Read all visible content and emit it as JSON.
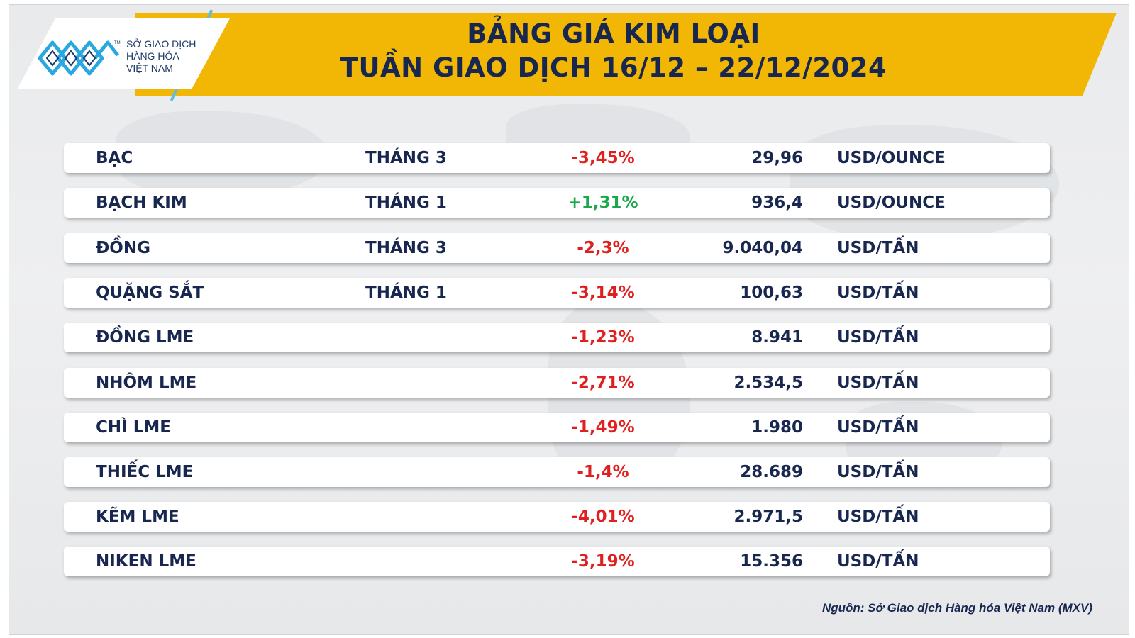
{
  "logo": {
    "line1": "SỞ GIAO DỊCH",
    "line2": "HÀNG HÓA",
    "line3": "VIỆT NAM",
    "tm": "TM",
    "icon": "mxv-logo-icon",
    "color": "#2aa7df"
  },
  "header": {
    "title_line1": "BẢNG GIÁ KIM LOẠI",
    "title_line2": "TUẦN GIAO DỊCH 16/12 – 22/12/2024",
    "banner_color": "#f2b705"
  },
  "rows": [
    {
      "name": "BẠC",
      "month": "THÁNG 3",
      "change": "-3,45%",
      "price": "29,96",
      "unit": "USD/OUNCE"
    },
    {
      "name": "BẠCH KIM",
      "month": "THÁNG 1",
      "change": "+1,31%",
      "price": "936,4",
      "unit": "USD/OUNCE"
    },
    {
      "name": "ĐỒNG",
      "month": "THÁNG 3",
      "change": "-2,3%",
      "price": "9.040,04",
      "unit": "USD/TẤN"
    },
    {
      "name": "QUẶNG SẮT",
      "month": "THÁNG 1",
      "change": "-3,14%",
      "price": "100,63",
      "unit": "USD/TẤN"
    },
    {
      "name": "ĐỒNG LME",
      "month": "",
      "change": "-1,23%",
      "price": "8.941",
      "unit": "USD/TẤN"
    },
    {
      "name": "NHÔM LME",
      "month": "",
      "change": "-2,71%",
      "price": "2.534,5",
      "unit": "USD/TẤN"
    },
    {
      "name": "CHÌ LME",
      "month": "",
      "change": "-1,49%",
      "price": "1.980",
      "unit": "USD/TẤN"
    },
    {
      "name": "THIẾC LME",
      "month": "",
      "change": "-1,4%",
      "price": "28.689",
      "unit": "USD/TẤN"
    },
    {
      "name": "KẼM LME",
      "month": "",
      "change": "-4,01%",
      "price": "2.971,5",
      "unit": "USD/TẤN"
    },
    {
      "name": "NIKEN LME",
      "month": "",
      "change": "-3,19%",
      "price": "15.356",
      "unit": "USD/TẤN"
    }
  ],
  "colors": {
    "negative": "#e02020",
    "positive": "#1ba84a",
    "text": "#18274f"
  },
  "source": "Nguồn: Sở Giao dịch Hàng hóa Việt Nam (MXV)"
}
